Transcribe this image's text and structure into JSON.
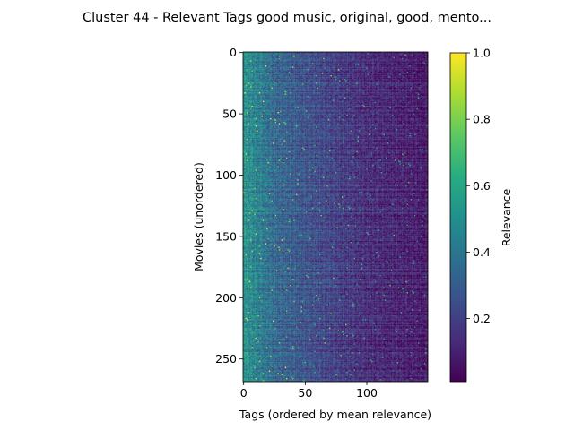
{
  "chart_data": {
    "type": "heatmap",
    "title": "Cluster 44 - Relevant Tags good music, original, good, mento...",
    "xlabel": "Tags (ordered by mean relevance)",
    "ylabel": "Movies (unordered)",
    "colorbar_label": "Relevance",
    "colormap": "viridis",
    "n_cols": 150,
    "n_rows": 269,
    "x_ticks": [
      0,
      50,
      100
    ],
    "y_ticks": [
      0,
      50,
      100,
      150,
      200,
      250
    ],
    "colorbar_range": [
      0.01,
      1.0
    ],
    "colorbar_ticks": [
      0.2,
      0.4,
      0.6,
      0.8,
      1.0
    ],
    "x_tick_labels": [
      "0",
      "50",
      "100"
    ],
    "y_tick_labels": [
      "0",
      "50",
      "100",
      "150",
      "200",
      "250"
    ],
    "colorbar_tick_labels": [
      "0.2",
      "0.4",
      "0.6",
      "0.8",
      "1.0"
    ],
    "column_mean_profile": [
      {
        "tag_index": 0,
        "mean_relevance": 0.52
      },
      {
        "tag_index": 10,
        "mean_relevance": 0.45
      },
      {
        "tag_index": 25,
        "mean_relevance": 0.34
      },
      {
        "tag_index": 50,
        "mean_relevance": 0.26
      },
      {
        "tag_index": 75,
        "mean_relevance": 0.19
      },
      {
        "tag_index": 100,
        "mean_relevance": 0.13
      },
      {
        "tag_index": 149,
        "mean_relevance": 0.07
      }
    ]
  }
}
